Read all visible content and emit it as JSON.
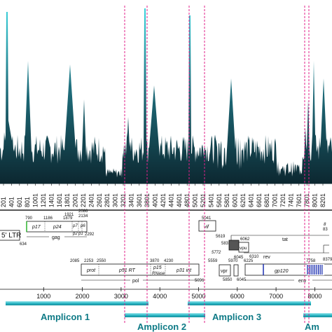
{
  "coverage_positions": [
    "201",
    "401",
    "601",
    "801",
    "1001",
    "1201",
    "1401",
    "1601",
    "1801",
    "2001",
    "2201",
    "2401",
    "2601",
    "2801",
    "3001",
    "3201",
    "3401",
    "3601",
    "3801",
    "4001",
    "4201",
    "4401",
    "4601",
    "4801",
    "5001",
    "5201",
    "5401",
    "5601",
    "5801",
    "6001",
    "6201",
    "6401",
    "6601",
    "6801",
    "7001",
    "7201",
    "7401",
    "7601",
    "7801",
    "8001",
    "8201"
  ],
  "genome": {
    "ltr_label": "5' LTR",
    "ltr_end": "634",
    "gag": {
      "label": "gag",
      "numbers": {
        "n790": "790",
        "n1186": "1186",
        "n1921": "1921",
        "n1879": "1879",
        "n2086": "2086",
        "n2134": "2134",
        "n2292": "2292"
      },
      "domains": {
        "p17": "p17",
        "p24": "p24",
        "p7": "p7",
        "p6": "p6",
        "p2": "p2",
        "p1": "p1"
      }
    },
    "pol": {
      "label": "pol",
      "numbers": {
        "n2085": "2085",
        "n2253": "2253",
        "n2550": "2550",
        "n3870": "3870",
        "n4230": "4230",
        "n5096": "5096"
      },
      "domains": {
        "prot": "prot",
        "p51rt": "p51 RT",
        "p15": "p15",
        "rnase": "RNase",
        "p31": "p31 int"
      }
    },
    "vif": {
      "label": "vif",
      "start": "5041",
      "end": "5619"
    },
    "vpr": {
      "label": "vpr",
      "start": "5559",
      "end": "5850"
    },
    "vpu": {
      "label": "vpu",
      "start": "6045",
      "end": "6310",
      "n6062": "6062"
    },
    "tat": {
      "label": "tat",
      "n5831": "5831",
      "n5772": "5772"
    },
    "rev": {
      "label": "rev",
      "n5970": "5970",
      "n6045": "6045"
    },
    "env": {
      "label": "env",
      "start": "6225",
      "gp120": "gp120",
      "gp41": "gp41",
      "n7758": "7758",
      "n8379": "8379"
    },
    "right_cut": {
      "n1": "8",
      "n2": "83"
    }
  },
  "axis_ticks": [
    "1000",
    "2000",
    "3000",
    "4000",
    "5000",
    "6000",
    "7000",
    "8000"
  ],
  "amplicons": [
    "Amplicon 1",
    "Amplicon 2",
    "Amplicon 3",
    "Am"
  ],
  "colors": {
    "coverage_top": "#36c6d0",
    "coverage_bottom": "#0f2a33",
    "boundary": "#e0208a",
    "amplicon_bar": "#2ab7c4"
  }
}
